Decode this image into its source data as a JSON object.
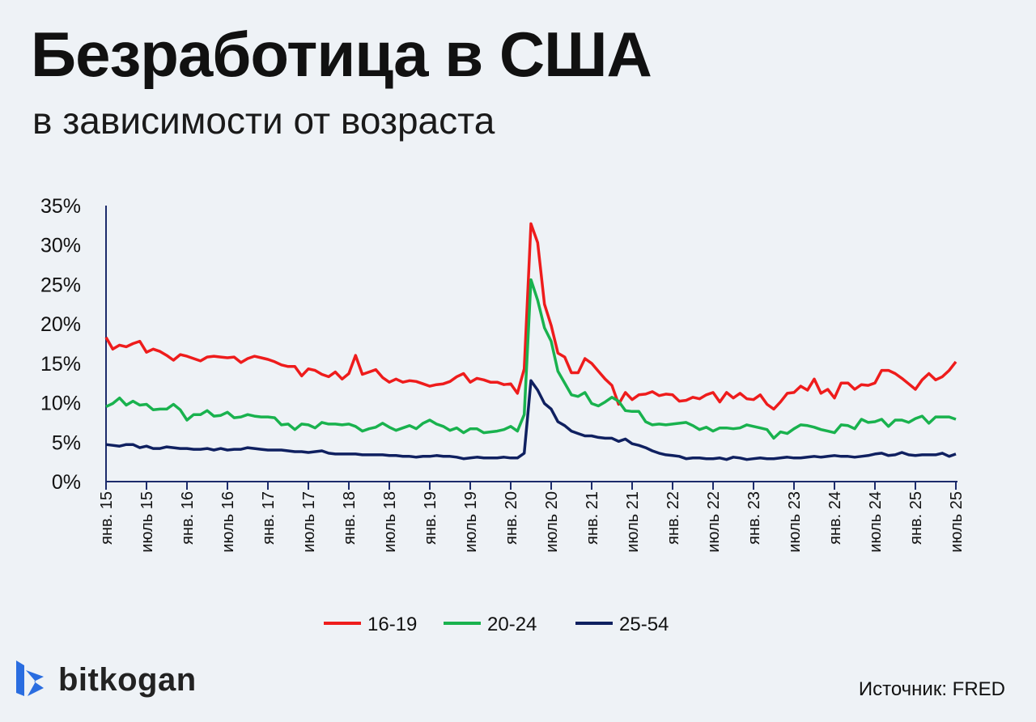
{
  "title": "Безработица в США",
  "subtitle": "в зависимости от возраста",
  "source": "Источник: FRED",
  "logo": {
    "text": "bitkogan",
    "color": "#2a6de0"
  },
  "chart_data": {
    "type": "line",
    "title": "Безработица в США",
    "subtitle": "в зависимости от возраста",
    "xlabel": "",
    "ylabel": "",
    "ylim": [
      0,
      35
    ],
    "yticks": [
      "0%",
      "5%",
      "10%",
      "15%",
      "20%",
      "25%",
      "30%",
      "35%"
    ],
    "x_start": "2015-01",
    "x_end": "2025-07",
    "frequency": "monthly",
    "xticks": [
      "янв. 15",
      "июль 15",
      "янв. 16",
      "июль 16",
      "янв. 17",
      "июль 17",
      "янв. 18",
      "июль 18",
      "янв. 19",
      "июль 19",
      "янв. 20",
      "июль 20",
      "янв. 21",
      "июль 21",
      "янв. 22",
      "июль 22",
      "янв. 23",
      "июль 23",
      "янв. 24",
      "июль 24",
      "янв. 25",
      "июль 25"
    ],
    "grid": false,
    "legend_position": "bottom-center",
    "series": [
      {
        "name": "16-19",
        "color": "#ee1c1c",
        "values": [
          18.3,
          16.8,
          17.3,
          17.1,
          17.5,
          17.8,
          16.4,
          16.8,
          16.5,
          16.0,
          15.4,
          16.1,
          15.9,
          15.6,
          15.3,
          15.8,
          15.9,
          15.8,
          15.7,
          15.8,
          15.1,
          15.6,
          15.9,
          15.7,
          15.5,
          15.2,
          14.8,
          14.6,
          14.6,
          13.4,
          14.3,
          14.1,
          13.6,
          13.3,
          13.9,
          13.0,
          13.7,
          16.0,
          13.6,
          13.9,
          14.2,
          13.2,
          12.6,
          13.0,
          12.6,
          12.8,
          12.7,
          12.4,
          12.1,
          12.3,
          12.4,
          12.7,
          13.3,
          13.7,
          12.6,
          13.1,
          12.9,
          12.6,
          12.6,
          12.3,
          12.4,
          11.2,
          14.3,
          32.7,
          30.3,
          22.5,
          19.8,
          16.3,
          15.8,
          13.8,
          13.8,
          15.6,
          15.0,
          14.0,
          13.0,
          12.2,
          9.8,
          11.3,
          10.4,
          11.0,
          11.1,
          11.4,
          10.9,
          11.1,
          11.0,
          10.2,
          10.3,
          10.7,
          10.5,
          11.0,
          11.3,
          10.1,
          11.3,
          10.6,
          11.2,
          10.5,
          10.4,
          11.0,
          9.8,
          9.2,
          10.1,
          11.2,
          11.3,
          12.1,
          11.6,
          13.0,
          11.2,
          11.7,
          10.6,
          12.5,
          12.5,
          11.7,
          12.3,
          12.2,
          12.5,
          14.1,
          14.1,
          13.7,
          13.1,
          12.4,
          11.7,
          12.9,
          13.7,
          12.9,
          13.3,
          14.1,
          15.2
        ]
      },
      {
        "name": "20-24",
        "color": "#19b24e",
        "values": [
          9.5,
          9.9,
          10.6,
          9.7,
          10.2,
          9.7,
          9.8,
          9.1,
          9.2,
          9.2,
          9.8,
          9.1,
          7.8,
          8.5,
          8.5,
          9.0,
          8.3,
          8.4,
          8.8,
          8.1,
          8.2,
          8.5,
          8.3,
          8.2,
          8.2,
          8.1,
          7.2,
          7.3,
          6.6,
          7.3,
          7.2,
          6.8,
          7.5,
          7.3,
          7.3,
          7.2,
          7.3,
          7.0,
          6.4,
          6.7,
          6.9,
          7.4,
          6.9,
          6.5,
          6.8,
          7.1,
          6.7,
          7.4,
          7.8,
          7.3,
          7.0,
          6.5,
          6.8,
          6.2,
          6.7,
          6.7,
          6.2,
          6.3,
          6.4,
          6.6,
          7.0,
          6.4,
          8.5,
          25.6,
          23.0,
          19.5,
          17.8,
          14.0,
          12.5,
          11.0,
          10.8,
          11.3,
          9.9,
          9.6,
          10.1,
          10.7,
          10.2,
          9.0,
          8.9,
          8.9,
          7.6,
          7.2,
          7.3,
          7.2,
          7.3,
          7.4,
          7.5,
          7.1,
          6.6,
          6.9,
          6.4,
          6.8,
          6.8,
          6.7,
          6.8,
          7.2,
          7.0,
          6.8,
          6.6,
          5.5,
          6.3,
          6.1,
          6.7,
          7.2,
          7.1,
          6.9,
          6.6,
          6.4,
          6.2,
          7.2,
          7.1,
          6.7,
          7.9,
          7.5,
          7.6,
          7.9,
          7.0,
          7.8,
          7.8,
          7.5,
          8.0,
          8.3,
          7.4,
          8.2,
          8.2,
          8.2,
          7.9
        ]
      },
      {
        "name": "25-54",
        "color": "#0f2060",
        "values": [
          4.7,
          4.6,
          4.5,
          4.7,
          4.7,
          4.3,
          4.5,
          4.2,
          4.2,
          4.4,
          4.3,
          4.2,
          4.2,
          4.1,
          4.1,
          4.2,
          4.0,
          4.2,
          4.0,
          4.1,
          4.1,
          4.3,
          4.2,
          4.1,
          4.0,
          4.0,
          4.0,
          3.9,
          3.8,
          3.8,
          3.7,
          3.8,
          3.9,
          3.6,
          3.5,
          3.5,
          3.5,
          3.5,
          3.4,
          3.4,
          3.4,
          3.4,
          3.3,
          3.3,
          3.2,
          3.2,
          3.1,
          3.2,
          3.2,
          3.3,
          3.2,
          3.2,
          3.1,
          2.9,
          3.0,
          3.1,
          3.0,
          3.0,
          3.0,
          3.1,
          3.0,
          3.0,
          3.6,
          12.8,
          11.6,
          9.9,
          9.2,
          7.6,
          7.1,
          6.4,
          6.1,
          5.8,
          5.8,
          5.6,
          5.5,
          5.5,
          5.1,
          5.4,
          4.8,
          4.6,
          4.3,
          3.9,
          3.6,
          3.4,
          3.3,
          3.2,
          2.9,
          3.0,
          3.0,
          2.9,
          2.9,
          3.0,
          2.8,
          3.1,
          3.0,
          2.8,
          2.9,
          3.0,
          2.9,
          2.9,
          3.0,
          3.1,
          3.0,
          3.0,
          3.1,
          3.2,
          3.1,
          3.2,
          3.3,
          3.2,
          3.2,
          3.1,
          3.2,
          3.3,
          3.5,
          3.6,
          3.3,
          3.4,
          3.7,
          3.4,
          3.3,
          3.4,
          3.4,
          3.4,
          3.6,
          3.2,
          3.5
        ]
      }
    ]
  }
}
